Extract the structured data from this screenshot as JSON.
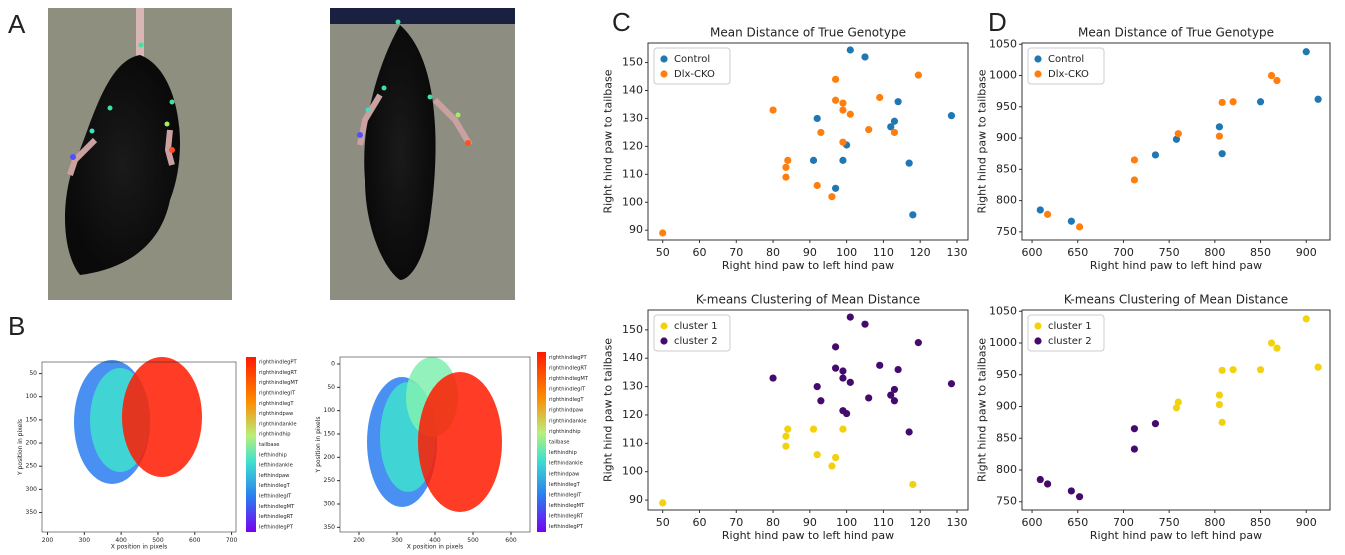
{
  "panel_labels": [
    "A",
    "B",
    "C",
    "D"
  ],
  "chart_data": [
    {
      "type": "density",
      "xlabel": "X position in pixels",
      "ylabel": "Y position in pixels",
      "xlim": [
        185,
        712
      ],
      "ylim": [
        25,
        392
      ],
      "y_inverted": true,
      "xticks": [
        200,
        300,
        400,
        500,
        600,
        700
      ],
      "yticks": [
        50,
        100,
        150,
        200,
        250,
        300,
        350
      ],
      "colorbar_labels": [
        "righthindlegPT",
        "righthindlegRT",
        "righthindlegMT",
        "righthindlegIT",
        "righthindlegT",
        "righthindpaw",
        "righthindankle",
        "righthindhip",
        "tailbase",
        "lefthindhip",
        "lefthindankle",
        "lefthindpaw",
        "lefthindlegT",
        "lefthindlegIT",
        "lefthindlegMT",
        "lefthindlegRT",
        "lefthindlegPT"
      ]
    },
    {
      "type": "density",
      "xlabel": "X position in pixels",
      "ylabel": "Y position in pixels",
      "xlim": [
        150,
        650
      ],
      "ylim": [
        -15,
        360
      ],
      "y_inverted": true,
      "xticks": [
        200,
        300,
        400,
        500,
        600
      ],
      "yticks": [
        0,
        50,
        100,
        150,
        200,
        250,
        300,
        350
      ],
      "colorbar_labels": [
        "righthindlegPT",
        "righthindlegRT",
        "righthindlegMT",
        "righthindlegIT",
        "righthindlegT",
        "righthindpaw",
        "righthindankle",
        "righthindhip",
        "tailbase",
        "lefthindhip",
        "lefthindankle",
        "lefthindpaw",
        "lefthindlegT",
        "lefthindlegIT",
        "lefthindlegMT",
        "lefthindlegRT",
        "lefthindlegPT"
      ]
    },
    {
      "type": "scatter",
      "title": "Mean Distance of True Genotype",
      "xlabel": "Right hind paw to left hind paw",
      "ylabel": "Right hind paw to tailbase",
      "xlim": [
        46,
        133
      ],
      "ylim": [
        86.5,
        157
      ],
      "xticks": [
        50,
        60,
        70,
        80,
        90,
        100,
        110,
        120,
        130
      ],
      "yticks": [
        90,
        100,
        110,
        120,
        130,
        140,
        150
      ],
      "legend": "upper left",
      "series": [
        {
          "name": "Control",
          "color": "#1f77b4",
          "x": [
            101,
            105,
            92,
            114,
            113,
            112,
            128.5,
            100,
            99,
            91,
            97,
            117,
            118
          ],
          "values": [
            154.5,
            152,
            130,
            136,
            129,
            127,
            131,
            120.5,
            115,
            115,
            105,
            114,
            95.5
          ]
        },
        {
          "name": "Dlx-CKO",
          "color": "#ff7f0e",
          "x": [
            50,
            80,
            97,
            119.5,
            109,
            97,
            99,
            99,
            101,
            106,
            113,
            93,
            99,
            84,
            83.5,
            83.5,
            92,
            96
          ],
          "values": [
            89,
            133,
            144,
            145.5,
            137.5,
            136.5,
            135.5,
            133,
            131.5,
            126,
            125,
            125,
            121.5,
            115,
            112.5,
            109,
            106,
            102
          ]
        }
      ]
    },
    {
      "type": "scatter",
      "title": "K-means Clustering of Mean Distance",
      "xlabel": "Right hind paw to left hind paw",
      "ylabel": "Right hind paw to tailbase",
      "xlim": [
        46,
        133
      ],
      "ylim": [
        86.5,
        157
      ],
      "xticks": [
        50,
        60,
        70,
        80,
        90,
        100,
        110,
        120,
        130
      ],
      "yticks": [
        90,
        100,
        110,
        120,
        130,
        140,
        150
      ],
      "legend": "upper left",
      "series": [
        {
          "name": "cluster 1",
          "color": "#f2d20f",
          "x": [
            50,
            84,
            83.5,
            83.5,
            91,
            92,
            96,
            97,
            99,
            118
          ],
          "values": [
            89,
            115,
            112.5,
            109,
            115,
            106,
            102,
            105,
            115,
            95.5
          ]
        },
        {
          "name": "cluster 2",
          "color": "#440a6e",
          "x": [
            101,
            105,
            92,
            114,
            113,
            112,
            128.5,
            100,
            117,
            80,
            97,
            119.5,
            109,
            97,
            99,
            99,
            101,
            106,
            113,
            93,
            99
          ],
          "values": [
            154.5,
            152,
            130,
            136,
            129,
            127,
            131,
            120.5,
            114,
            133,
            144,
            145.5,
            137.5,
            136.5,
            135.5,
            133,
            131.5,
            126,
            125,
            125,
            121.5
          ]
        }
      ]
    },
    {
      "type": "scatter",
      "title": "Mean Distance of True Genotype",
      "xlabel": "Right hind paw to left hind paw",
      "ylabel": "Right hind paw to tailbase",
      "xlim": [
        589,
        926
      ],
      "ylim": [
        737,
        1052
      ],
      "xticks": [
        600,
        650,
        700,
        750,
        800,
        850,
        900
      ],
      "yticks": [
        750,
        800,
        850,
        900,
        950,
        1000,
        1050
      ],
      "legend": "upper left",
      "series": [
        {
          "name": "Control",
          "color": "#1f77b4",
          "x": [
            900,
            913,
            850,
            805,
            808,
            758,
            735,
            609,
            643
          ],
          "values": [
            1038,
            962,
            958,
            918,
            875,
            898,
            873,
            785,
            767
          ]
        },
        {
          "name": "Dlx-CKO",
          "color": "#ff7f0e",
          "x": [
            862,
            868,
            820,
            808,
            760,
            805,
            712,
            712,
            617,
            652
          ],
          "values": [
            1000,
            992,
            958,
            957,
            907,
            903,
            865,
            833,
            778,
            758
          ]
        }
      ]
    },
    {
      "type": "scatter",
      "title": "K-means Clustering of Mean Distance",
      "xlabel": "Right hind paw to left hind paw",
      "ylabel": "Right hind paw to tailbase",
      "xlim": [
        589,
        926
      ],
      "ylim": [
        737,
        1052
      ],
      "xticks": [
        600,
        650,
        700,
        750,
        800,
        850,
        900
      ],
      "yticks": [
        750,
        800,
        850,
        900,
        950,
        1000,
        1050
      ],
      "legend": "upper left",
      "series": [
        {
          "name": "cluster 1",
          "color": "#f2d20f",
          "x": [
            900,
            913,
            862,
            868,
            850,
            820,
            808,
            805,
            805,
            808,
            760,
            758
          ],
          "values": [
            1038,
            962,
            1000,
            992,
            958,
            958,
            957,
            918,
            903,
            875,
            907,
            898
          ]
        },
        {
          "name": "cluster 2",
          "color": "#440a6e",
          "x": [
            735,
            712,
            712,
            609,
            617,
            643,
            652
          ],
          "values": [
            873,
            865,
            833,
            785,
            778,
            767,
            758
          ]
        }
      ]
    }
  ]
}
